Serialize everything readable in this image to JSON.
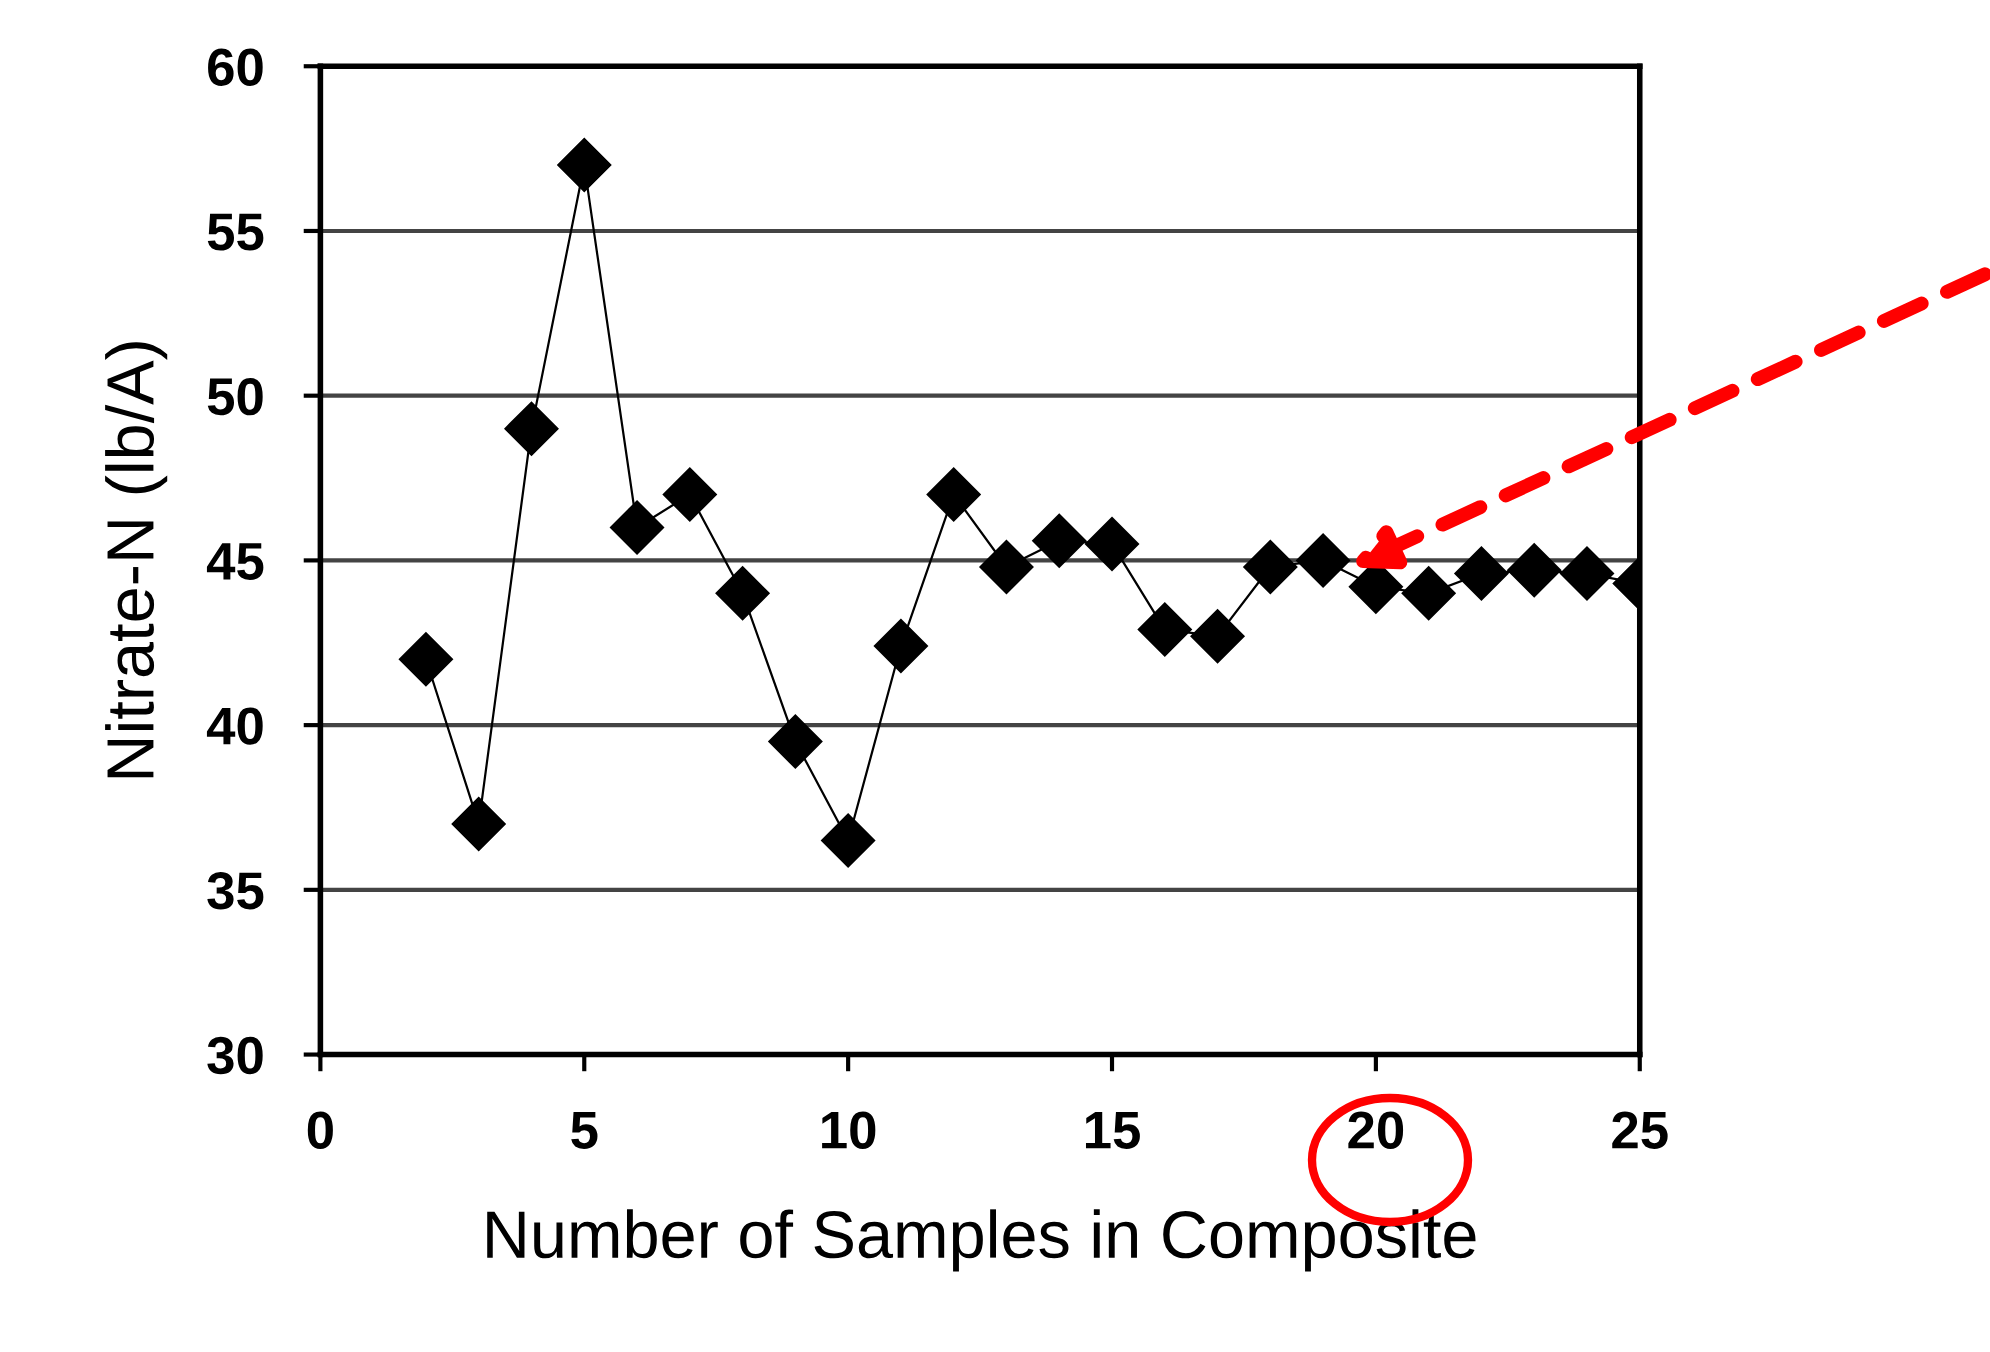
{
  "chart_data": {
    "type": "line",
    "xlabel": "Number of Samples in Composite",
    "ylabel": "Nitrate-N (lb/A)",
    "x": [
      2,
      3,
      4,
      5,
      6,
      7,
      8,
      9,
      10,
      11,
      12,
      13,
      14,
      15,
      16,
      17,
      18,
      19,
      20,
      21,
      22,
      23,
      24,
      25
    ],
    "series": [
      {
        "color": "#000000",
        "values": [
          42,
          37,
          49,
          57,
          46,
          47,
          44,
          39.5,
          36.5,
          42.4,
          47,
          44.8,
          45.6,
          45.5,
          42.9,
          42.7,
          44.8,
          45,
          44.2,
          44,
          44.6,
          44.7,
          44.6,
          44.3
        ]
      }
    ],
    "xlim": [
      0,
      25
    ],
    "xticks": [
      0,
      5,
      10,
      15,
      20,
      25
    ],
    "ylim": [
      30,
      60
    ],
    "yticks": [
      30,
      35,
      40,
      45,
      50,
      55,
      60
    ],
    "grid": "y",
    "marker": "diamond",
    "line_style": "solid",
    "legend": false
  }
}
